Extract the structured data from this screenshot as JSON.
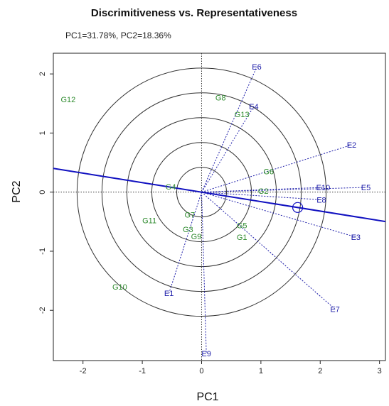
{
  "chart_data": {
    "type": "scatter",
    "title": "Discrimitiveness vs. Representativeness",
    "subtitle": "PC1=31.78%, PC2=18.36%",
    "xlabel": "PC1",
    "ylabel": "PC2",
    "xlim": [
      -2.5,
      3.1
    ],
    "ylim": [
      -2.85,
      2.35
    ],
    "x_ticks": [
      -2,
      -1,
      0,
      1,
      2,
      3
    ],
    "y_ticks": [
      -2,
      -1,
      0,
      1,
      2
    ],
    "x_tick_labels": [
      "-2",
      "-1",
      "0",
      "1",
      "2",
      "3"
    ],
    "y_tick_labels": [
      "-2",
      "-1",
      "0",
      "1",
      "2"
    ],
    "circle_radii": [
      0.42,
      0.84,
      1.26,
      1.68,
      2.1
    ],
    "average_environment": {
      "x": 1.62,
      "y": -0.26
    },
    "colors": {
      "genotype": "#2e8b2e",
      "environment": "#1a1aa8",
      "aea_line": "#1010c0",
      "circles": "#333333",
      "vectors": "#1a1aa8"
    },
    "genotypes": [
      {
        "name": "G12",
        "x": -2.25,
        "y": 1.57
      },
      {
        "name": "G8",
        "x": 0.32,
        "y": 1.6
      },
      {
        "name": "G13",
        "x": 0.68,
        "y": 1.32
      },
      {
        "name": "G6",
        "x": 1.13,
        "y": 0.35
      },
      {
        "name": "G2",
        "x": 1.04,
        "y": 0.02
      },
      {
        "name": "G4",
        "x": -0.52,
        "y": 0.09
      },
      {
        "name": "G11",
        "x": -0.88,
        "y": -0.48
      },
      {
        "name": "G7",
        "x": -0.2,
        "y": -0.38
      },
      {
        "name": "G3",
        "x": -0.23,
        "y": -0.63
      },
      {
        "name": "G9",
        "x": -0.09,
        "y": -0.75
      },
      {
        "name": "G5",
        "x": 0.68,
        "y": -0.56
      },
      {
        "name": "G1",
        "x": 0.68,
        "y": -0.76
      },
      {
        "name": "G10",
        "x": -1.38,
        "y": -1.6
      }
    ],
    "environments": [
      {
        "name": "E6",
        "x": 0.93,
        "y": 2.12
      },
      {
        "name": "E4",
        "x": 0.88,
        "y": 1.45
      },
      {
        "name": "E2",
        "x": 2.53,
        "y": 0.8
      },
      {
        "name": "E10",
        "x": 2.05,
        "y": 0.08
      },
      {
        "name": "E5",
        "x": 2.77,
        "y": 0.08
      },
      {
        "name": "E8",
        "x": 2.02,
        "y": -0.13
      },
      {
        "name": "E3",
        "x": 2.6,
        "y": -0.76
      },
      {
        "name": "E7",
        "x": 2.25,
        "y": -1.98
      },
      {
        "name": "E1",
        "x": -0.55,
        "y": -1.71
      },
      {
        "name": "E9",
        "x": 0.08,
        "y": -2.73
      }
    ]
  }
}
